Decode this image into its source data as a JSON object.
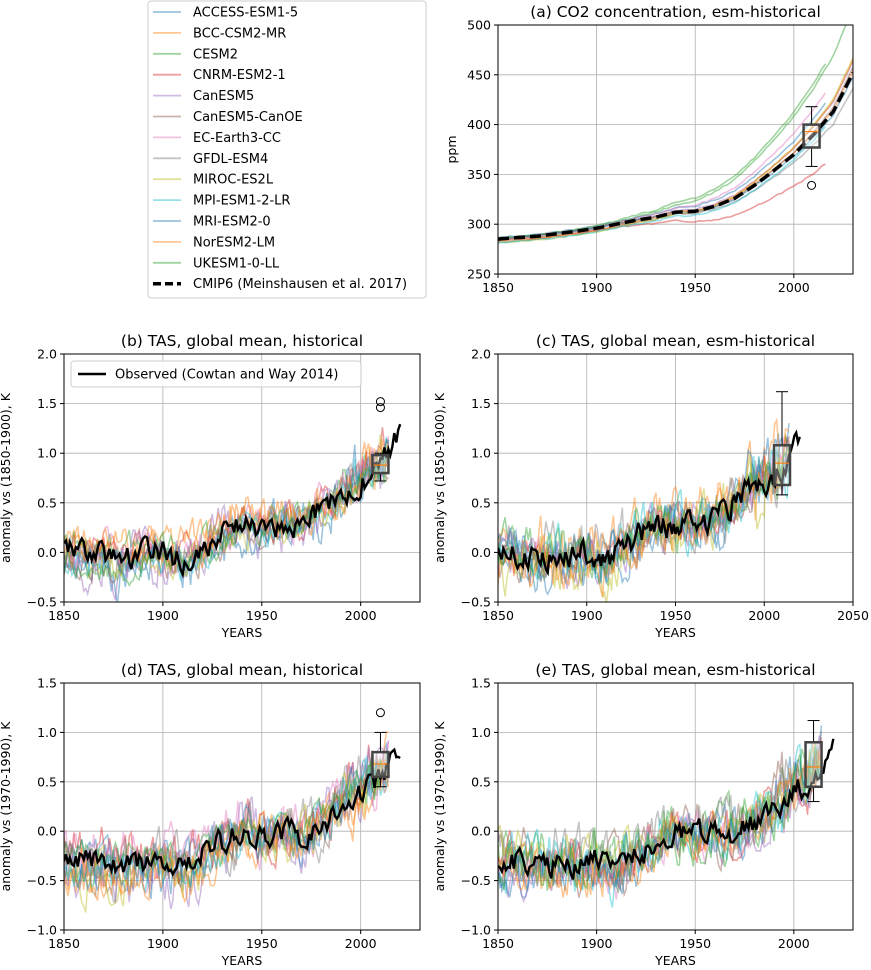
{
  "legend": {
    "entries": [
      {
        "name": "ACCESS-ESM1-5",
        "color": "#1f77b4"
      },
      {
        "name": "BCC-CSM2-MR",
        "color": "#ff7f0e"
      },
      {
        "name": "CESM2",
        "color": "#2ca02c"
      },
      {
        "name": "CNRM-ESM2-1",
        "color": "#d62728"
      },
      {
        "name": "CanESM5",
        "color": "#9467bd"
      },
      {
        "name": "CanESM5-CanOE",
        "color": "#8c564b"
      },
      {
        "name": "EC-Earth3-CC",
        "color": "#e377c2"
      },
      {
        "name": "GFDL-ESM4",
        "color": "#7f7f7f"
      },
      {
        "name": "MIROC-ES2L",
        "color": "#bcbd22"
      },
      {
        "name": "MPI-ESM1-2-LR",
        "color": "#17becf"
      },
      {
        "name": "MRI-ESM2-0",
        "color": "#1f77b4"
      },
      {
        "name": "NorESM2-LM",
        "color": "#ff7f0e"
      },
      {
        "name": "UKESM1-0-LL",
        "color": "#2ca02c"
      },
      {
        "name": "CMIP6 (Meinshausen et al. 2017)",
        "color": "#000000",
        "dashed": true
      }
    ]
  },
  "chart_data": [
    {
      "id": "a",
      "type": "line",
      "title": "(a) CO2 concentration,  esm-historical",
      "xlabel": "",
      "ylabel": "ppm",
      "xlim": [
        1850,
        2030
      ],
      "ylim": [
        250,
        500
      ],
      "xticks": [
        1850,
        1900,
        1950,
        2000
      ],
      "yticks": [
        250,
        300,
        350,
        400,
        450,
        500
      ],
      "grid": true,
      "reference": {
        "name": "CMIP6 (Meinshausen et al. 2017)",
        "dashed": true,
        "x": [
          1850,
          1870,
          1890,
          1900,
          1910,
          1920,
          1930,
          1940,
          1950,
          1960,
          1970,
          1980,
          1990,
          2000,
          2010,
          2020,
          2030
        ],
        "y": [
          285,
          288,
          293,
          296,
          300,
          304,
          307,
          312,
          313,
          318,
          326,
          339,
          354,
          370,
          390,
          413,
          452
        ]
      },
      "model_endpoints": [
        418,
        400,
        460,
        350,
        410,
        405,
        432,
        385,
        415,
        395,
        395,
        412,
        465
      ],
      "boxplot": {
        "x": 2009,
        "whisker_low": 358,
        "q1": 377,
        "median": 393,
        "q3": 400,
        "whisker_high": 418,
        "outliers": [
          339
        ]
      }
    },
    {
      "id": "b",
      "type": "line",
      "title": "(b) TAS, global mean, historical",
      "xlabel": "YEARS",
      "ylabel": "anomaly vs (1850-1900), K",
      "xlim": [
        1850,
        2030
      ],
      "ylim": [
        -0.5,
        2.0
      ],
      "xticks": [
        1850,
        1900,
        1950,
        2000
      ],
      "yticks": [
        -0.5,
        0.0,
        0.5,
        1.0,
        1.5,
        2.0
      ],
      "yticklabels": [
        "−0.5",
        "0.0",
        "0.5",
        "1.0",
        "1.5",
        "2.0"
      ],
      "grid": true,
      "legend_entry": "Observed (Cowtan and Way 2014)",
      "legend_position": "top-left",
      "observed_trend": {
        "x": [
          1850,
          1880,
          1900,
          1910,
          1920,
          1940,
          1950,
          1960,
          1970,
          1980,
          1990,
          2000,
          2010,
          2020
        ],
        "y": [
          0.0,
          -0.05,
          0.0,
          -0.1,
          0.05,
          0.3,
          0.25,
          0.3,
          0.3,
          0.45,
          0.6,
          0.7,
          0.85,
          1.2
        ]
      },
      "models_end": 2014,
      "model_spread": 0.6,
      "boxplot": {
        "x": 2010,
        "whisker_low": 0.72,
        "q1": 0.8,
        "median": 0.88,
        "q3": 0.98,
        "whisker_high": 1.0,
        "outliers": [
          1.46,
          1.52
        ]
      }
    },
    {
      "id": "c",
      "type": "line",
      "title": "(c) TAS, global mean, esm-historical",
      "xlabel": "YEARS",
      "ylabel": "anomaly vs (1850-1900), K",
      "xlim": [
        1850,
        2050
      ],
      "ylim": [
        -0.5,
        2.0
      ],
      "xticks": [
        1850,
        1900,
        1950,
        2000,
        2050
      ],
      "yticks": [
        -0.5,
        0.0,
        0.5,
        1.0,
        1.5,
        2.0
      ],
      "yticklabels": [
        "−0.5",
        "0.0",
        "0.5",
        "1.0",
        "1.5",
        "2.0"
      ],
      "grid": true,
      "observed_trend": {
        "x": [
          1850,
          1880,
          1900,
          1910,
          1920,
          1940,
          1950,
          1960,
          1970,
          1980,
          1990,
          2000,
          2010,
          2020
        ],
        "y": [
          0.0,
          -0.05,
          0.0,
          -0.1,
          0.05,
          0.3,
          0.25,
          0.3,
          0.3,
          0.45,
          0.6,
          0.7,
          0.85,
          1.2
        ]
      },
      "models_end": 2014,
      "model_spread": 0.6,
      "boxplot": {
        "x": 2010,
        "whisker_low": 0.58,
        "q1": 0.68,
        "median": 0.9,
        "q3": 1.08,
        "whisker_high": 1.62,
        "outliers": []
      }
    },
    {
      "id": "d",
      "type": "line",
      "title": "(d) TAS, global mean, historical",
      "xlabel": "YEARS",
      "ylabel": "anomaly vs (1970-1990), K",
      "xlim": [
        1850,
        2030
      ],
      "ylim": [
        -1.0,
        1.5
      ],
      "xticks": [
        1850,
        1900,
        1950,
        2000
      ],
      "yticks": [
        -1.0,
        -0.5,
        0.0,
        0.5,
        1.0,
        1.5
      ],
      "yticklabels": [
        "−1.0",
        "−0.5",
        "0.0",
        "0.5",
        "1.0",
        "1.5"
      ],
      "grid": true,
      "observed_trend": {
        "x": [
          1850,
          1880,
          1900,
          1910,
          1920,
          1940,
          1950,
          1960,
          1970,
          1980,
          1990,
          2000,
          2010,
          2020
        ],
        "y": [
          -0.3,
          -0.35,
          -0.3,
          -0.4,
          -0.25,
          0.0,
          -0.05,
          0.0,
          -0.05,
          0.1,
          0.25,
          0.4,
          0.55,
          0.85
        ]
      },
      "models_end": 2014,
      "model_spread": 0.6,
      "boxplot": {
        "x": 2010,
        "whisker_low": 0.45,
        "q1": 0.55,
        "median": 0.68,
        "q3": 0.8,
        "whisker_high": 1.0,
        "outliers": [
          1.2
        ]
      }
    },
    {
      "id": "e",
      "type": "line",
      "title": "(e) TAS, global mean, esm-historical",
      "xlabel": "YEARS",
      "ylabel": "anomaly vs (1970-1990), K",
      "xlim": [
        1850,
        2030
      ],
      "ylim": [
        -1.0,
        1.5
      ],
      "xticks": [
        1850,
        1900,
        1950,
        2000
      ],
      "yticks": [
        -1.0,
        -0.5,
        0.0,
        0.5,
        1.0,
        1.5
      ],
      "yticklabels": [
        "−1.0",
        "−0.5",
        "0.0",
        "0.5",
        "1.0",
        "1.5"
      ],
      "grid": true,
      "observed_trend": {
        "x": [
          1850,
          1880,
          1900,
          1910,
          1920,
          1940,
          1950,
          1960,
          1970,
          1980,
          1990,
          2000,
          2010,
          2020
        ],
        "y": [
          -0.3,
          -0.35,
          -0.3,
          -0.4,
          -0.25,
          0.0,
          -0.05,
          0.0,
          -0.05,
          0.1,
          0.25,
          0.4,
          0.55,
          0.85
        ]
      },
      "models_end": 2014,
      "model_spread": 0.6,
      "boxplot": {
        "x": 2010,
        "whisker_low": 0.3,
        "q1": 0.45,
        "median": 0.65,
        "q3": 0.9,
        "whisker_high": 1.12,
        "outliers": []
      }
    }
  ]
}
